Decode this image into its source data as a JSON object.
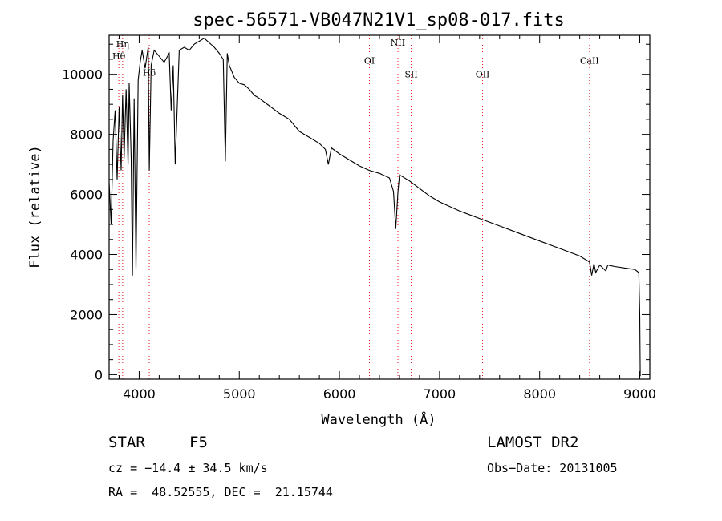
{
  "chart_data": {
    "type": "line",
    "title": "spec-56571-VB047N21V1_sp08-017.fits",
    "xlabel": "Wavelength (Å)",
    "ylabel": "Flux (relative)",
    "xlim": [
      3700,
      9100
    ],
    "ylim": [
      -150,
      11300
    ],
    "xticks": [
      4000,
      5000,
      6000,
      7000,
      8000,
      9000
    ],
    "yticks": [
      0,
      2000,
      4000,
      6000,
      8000,
      10000
    ],
    "series": [
      {
        "name": "spectrum",
        "x": [
          3700,
          3720,
          3740,
          3760,
          3780,
          3800,
          3820,
          3835,
          3850,
          3870,
          3889,
          3900,
          3920,
          3933,
          3950,
          3968,
          3990,
          4010,
          4030,
          4060,
          4090,
          4101,
          4120,
          4150,
          4200,
          4250,
          4300,
          4320,
          4340,
          4360,
          4400,
          4450,
          4500,
          4550,
          4600,
          4650,
          4700,
          4750,
          4800,
          4840,
          4861,
          4880,
          4900,
          4950,
          5000,
          5050,
          5100,
          5150,
          5200,
          5300,
          5400,
          5500,
          5600,
          5700,
          5800,
          5860,
          5890,
          5920,
          6000,
          6100,
          6200,
          6300,
          6400,
          6500,
          6540,
          6563,
          6585,
          6600,
          6700,
          6800,
          6900,
          7000,
          7200,
          7400,
          7600,
          7800,
          8000,
          8200,
          8400,
          8498,
          8520,
          8542,
          8560,
          8600,
          8662,
          8680,
          8750,
          8850,
          8950,
          8990,
          9000,
          9005
        ],
        "y": [
          6400,
          5000,
          7800,
          8800,
          6500,
          8900,
          6800,
          9300,
          7200,
          9500,
          7000,
          9700,
          7200,
          3300,
          9200,
          3500,
          9800,
          10400,
          10800,
          10200,
          10900,
          6800,
          10300,
          10800,
          10600,
          10400,
          10700,
          8800,
          10300,
          7000,
          10800,
          10900,
          10800,
          11000,
          11100,
          11200,
          11050,
          10900,
          10700,
          10500,
          7100,
          10700,
          10300,
          9900,
          9700,
          9650,
          9500,
          9300,
          9200,
          8950,
          8700,
          8500,
          8100,
          7900,
          7700,
          7500,
          7000,
          7550,
          7350,
          7150,
          6950,
          6800,
          6700,
          6550,
          6100,
          4850,
          6100,
          6650,
          6450,
          6200,
          5950,
          5750,
          5450,
          5200,
          4950,
          4700,
          4450,
          4200,
          3950,
          3750,
          3300,
          3700,
          3400,
          3650,
          3450,
          3650,
          3600,
          3550,
          3500,
          3400,
          2000,
          -50
        ]
      }
    ],
    "lines": [
      {
        "label": "Hη",
        "wavelength": 3835,
        "labelY": 10900
      },
      {
        "label": "Hθ",
        "wavelength": 3797,
        "labelY": 10500
      },
      {
        "label": "Hδ",
        "wavelength": 4101,
        "labelY": 9950
      },
      {
        "label": "OI",
        "wavelength": 6300,
        "labelY": 10350
      },
      {
        "label": "NII",
        "wavelength": 6584,
        "labelY": 10950
      },
      {
        "label": "SII",
        "wavelength": 6717,
        "labelY": 9900
      },
      {
        "label": "OII",
        "wavelength": 7430,
        "labelY": 9900
      },
      {
        "label": "CaII",
        "wavelength": 8498,
        "labelY": 10350
      }
    ],
    "colors": {
      "spectrum": "#000000",
      "line_markers": "#e8161d",
      "axes": "#000000"
    }
  },
  "info": {
    "object_class": "STAR",
    "subclass": "F5",
    "survey": "LAMOST DR2",
    "velocity": "cz = −14.4 ± 34.5 km/s",
    "obs_date": "Obs−Date: 20131005",
    "coords": "RA =  48.52555, DEC =  21.15744"
  }
}
